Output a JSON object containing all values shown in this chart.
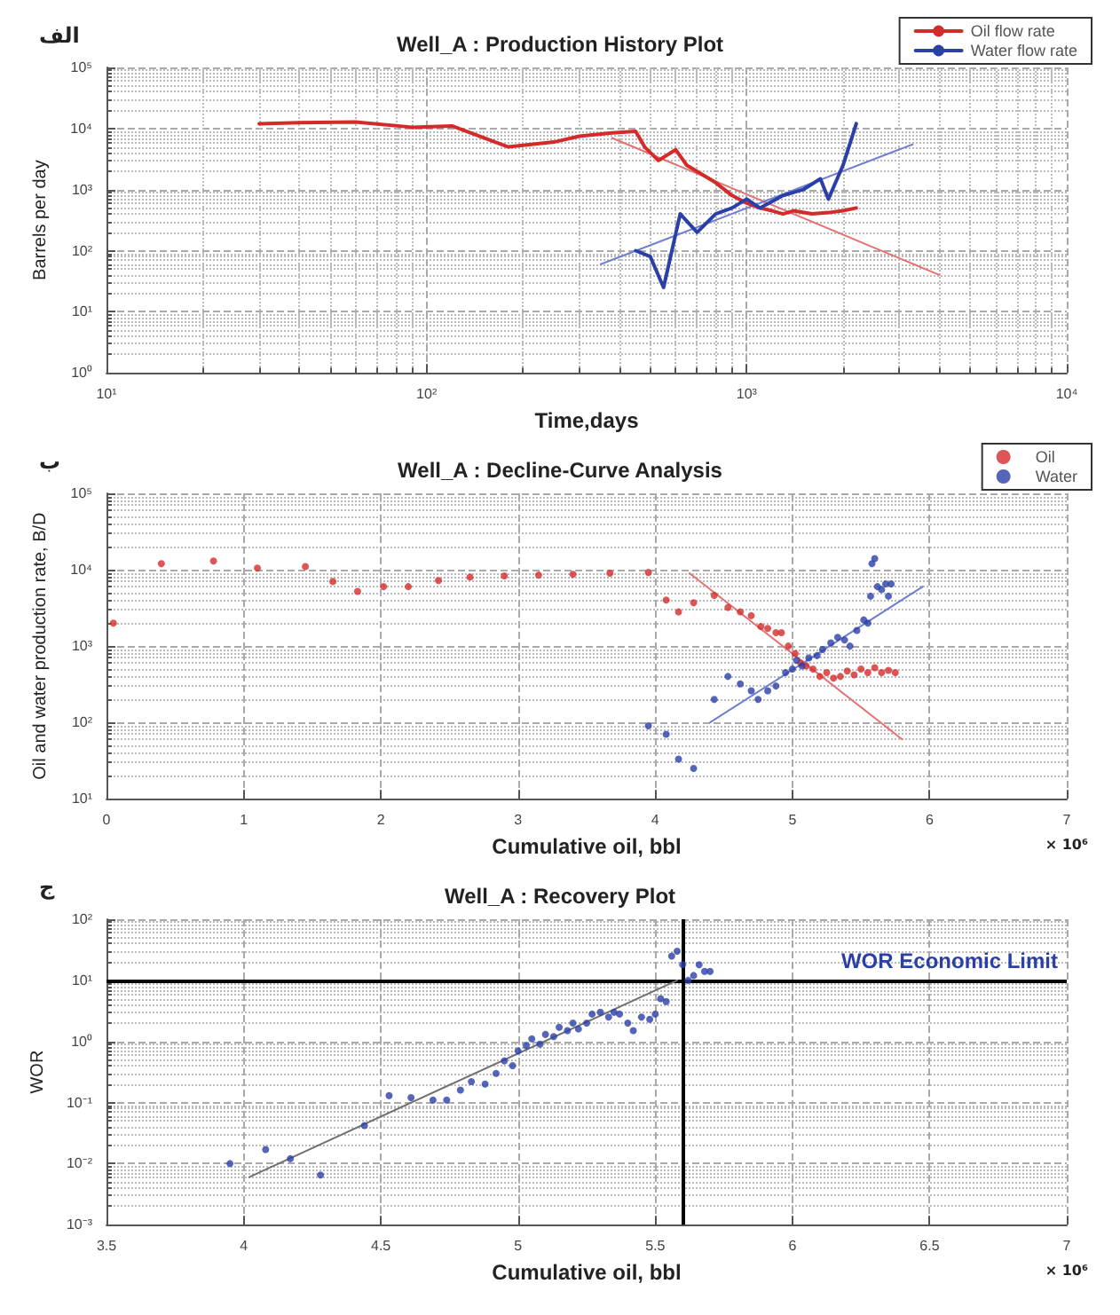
{
  "chart_data": [
    {
      "type": "line",
      "title": "Well_A : Production History Plot",
      "xlabel": "Time,days",
      "ylabel": "Barrels per day",
      "log": "xy",
      "grid": true,
      "legend": "top right",
      "xlim": [
        10,
        10000
      ],
      "xticks": [
        {
          "value": 10,
          "label": "10¹"
        },
        {
          "value": 100,
          "label": "10²"
        },
        {
          "value": 1000,
          "label": "10³"
        },
        {
          "value": 10000,
          "label": "10⁴"
        }
      ],
      "ylim": [
        1,
        100000
      ],
      "yticks": [
        {
          "value": 1,
          "label": "10⁰"
        },
        {
          "value": 10,
          "label": "10¹"
        },
        {
          "value": 100,
          "label": "10²"
        },
        {
          "value": 1000,
          "label": "10³"
        },
        {
          "value": 10000,
          "label": "10⁴"
        },
        {
          "value": 100000,
          "label": "10⁵"
        }
      ],
      "annotations": [
        "الف"
      ],
      "series": [
        {
          "name": "Oil flow rate",
          "color": "#d42a2a",
          "x": [
            30,
            40,
            60,
            90,
            120,
            180,
            250,
            300,
            380,
            450,
            480,
            530,
            600,
            650,
            800,
            900,
            1000,
            1100,
            1200,
            1300,
            1400,
            1600,
            1800,
            2000,
            2200
          ],
          "values": [
            12000,
            12500,
            12800,
            10500,
            11000,
            5000,
            6000,
            7500,
            8500,
            9000,
            5000,
            3000,
            4500,
            2500,
            1300,
            800,
            600,
            500,
            450,
            400,
            450,
            400,
            420,
            450,
            500
          ]
        },
        {
          "name": "Water flow rate",
          "color": "#2a3fa8",
          "x": [
            450,
            500,
            550,
            620,
            700,
            800,
            900,
            1000,
            1100,
            1300,
            1500,
            1700,
            1800,
            2000,
            2200
          ],
          "values": [
            100,
            80,
            25,
            400,
            200,
            400,
            500,
            700,
            500,
            800,
            1000,
            1500,
            700,
            2500,
            12000
          ]
        },
        {
          "color": "#e87070",
          "x": [
            380,
            4000
          ],
          "values": [
            7000,
            40
          ]
        },
        {
          "color": "#7080d0",
          "x": [
            350,
            3300
          ],
          "values": [
            60,
            5500
          ]
        }
      ]
    },
    {
      "type": "scatter",
      "title": "Well_A : Decline-Curve Analysis",
      "xlabel": "Cumulative oil, bbl",
      "ylabel": "Oil and water production rate, B/D",
      "log": "y",
      "grid": true,
      "legend": "top right",
      "marker": "circle",
      "xlim": [
        0,
        7
      ],
      "xticks": [
        0,
        1,
        2,
        3,
        4,
        5,
        6,
        7
      ],
      "ylim": [
        10,
        100000
      ],
      "yticks": [
        {
          "value": 10,
          "label": "10¹"
        },
        {
          "value": 100,
          "label": "10²"
        },
        {
          "value": 1000,
          "label": "10³"
        },
        {
          "value": 10000,
          "label": "10⁴"
        },
        {
          "value": 100000,
          "label": "10⁵"
        }
      ],
      "annotations": [
        "ب",
        "× 10⁶"
      ],
      "series": [
        {
          "name": "Oil",
          "color": "#d42a2a",
          "x": [
            0.05,
            0.4,
            0.78,
            1.1,
            1.45,
            1.65,
            1.83,
            2.02,
            2.2,
            2.42,
            2.65,
            2.9,
            3.15,
            3.4,
            3.67,
            3.95,
            4.08,
            4.17,
            4.28,
            4.43,
            4.53,
            4.62,
            4.7,
            4.77,
            4.82,
            4.88,
            4.92,
            4.97,
            5.02,
            5.06,
            5.1,
            5.15,
            5.2,
            5.25,
            5.3,
            5.35,
            5.4,
            5.45,
            5.5,
            5.55,
            5.6,
            5.65,
            5.7,
            5.75
          ],
          "values": [
            2000,
            12000,
            13000,
            10500,
            11000,
            7000,
            5200,
            6000,
            6000,
            7200,
            8000,
            8300,
            8500,
            8700,
            9000,
            9200,
            4000,
            2800,
            3700,
            4600,
            3200,
            2800,
            2500,
            1800,
            1700,
            1500,
            1500,
            1000,
            800,
            600,
            550,
            500,
            400,
            450,
            380,
            400,
            470,
            420,
            500,
            450,
            520,
            450,
            480,
            450
          ]
        },
        {
          "name": "Water",
          "color": "#2a3fa8",
          "x": [
            3.95,
            4.08,
            4.17,
            4.28,
            4.43,
            4.53,
            4.62,
            4.7,
            4.75,
            4.82,
            4.88,
            4.95,
            5.0,
            5.03,
            5.07,
            5.12,
            5.18,
            5.22,
            5.28,
            5.33,
            5.38,
            5.42,
            5.47,
            5.52,
            5.55,
            5.57,
            5.58,
            5.6,
            5.62,
            5.65,
            5.68,
            5.7,
            5.72
          ],
          "values": [
            90,
            70,
            33,
            25,
            200,
            400,
            320,
            260,
            200,
            260,
            300,
            450,
            500,
            650,
            550,
            700,
            750,
            900,
            1100,
            1300,
            1200,
            1000,
            1600,
            2200,
            2000,
            4500,
            12000,
            14000,
            6000,
            5500,
            6500,
            4500,
            6500
          ]
        },
        {
          "type": "line",
          "marker": "none",
          "color": "#e87070",
          "x": [
            4.25,
            5.8
          ],
          "values": [
            9000,
            60
          ]
        },
        {
          "type": "line",
          "marker": "none",
          "color": "#7080d0",
          "x": [
            4.4,
            5.95
          ],
          "values": [
            100,
            6000
          ]
        }
      ]
    },
    {
      "type": "scatter",
      "title": "Well_A : Recovery Plot",
      "xlabel": "Cumulative oil, bbl",
      "ylabel": "WOR",
      "log": "y",
      "grid": true,
      "marker": "circle",
      "xlim": [
        3.5,
        7
      ],
      "xticks": [
        3.5,
        4,
        4.5,
        5,
        5.5,
        6,
        6.5,
        7
      ],
      "ylim": [
        0.001,
        100
      ],
      "yticks": [
        {
          "value": 0.001,
          "label": "10⁻³"
        },
        {
          "value": 0.01,
          "label": "10⁻²"
        },
        {
          "value": 0.1,
          "label": "10⁻¹"
        },
        {
          "value": 1,
          "label": "10⁰"
        },
        {
          "value": 10,
          "label": "10¹"
        },
        {
          "value": 100,
          "label": "10²"
        }
      ],
      "annotations": [
        "ج",
        "× 10⁶"
      ],
      "ref_lines": [
        {
          "axis": "y",
          "value": 10,
          "label": "WOR Economic Limit",
          "color": "#000000"
        },
        {
          "axis": "x",
          "value": 5.6,
          "label": null,
          "color": "#000000"
        }
      ],
      "series": [
        {
          "color": "#2a3fa8",
          "x": [
            3.95,
            4.08,
            4.17,
            4.28,
            4.44,
            4.53,
            4.61,
            4.69,
            4.74,
            4.79,
            4.83,
            4.88,
            4.92,
            4.95,
            4.98,
            5.0,
            5.03,
            5.05,
            5.08,
            5.1,
            5.13,
            5.15,
            5.18,
            5.2,
            5.22,
            5.25,
            5.27,
            5.3,
            5.33,
            5.35,
            5.37,
            5.4,
            5.42,
            5.45,
            5.48,
            5.5,
            5.52,
            5.54,
            5.56,
            5.58,
            5.6,
            5.62,
            5.64,
            5.66,
            5.68,
            5.7
          ],
          "values": [
            0.01,
            0.017,
            0.012,
            0.0065,
            0.042,
            0.13,
            0.12,
            0.11,
            0.11,
            0.16,
            0.22,
            0.2,
            0.3,
            0.48,
            0.4,
            0.7,
            0.85,
            1.1,
            0.9,
            1.3,
            1.2,
            1.7,
            1.5,
            2.0,
            1.6,
            2.0,
            2.8,
            3.0,
            2.5,
            3.0,
            2.8,
            2.0,
            1.5,
            2.5,
            2.3,
            2.8,
            5,
            4.5,
            25,
            30,
            18,
            10,
            12,
            18,
            14,
            14
          ]
        },
        {
          "type": "line",
          "marker": "none",
          "color": "#707070",
          "x": [
            4.02,
            5.58
          ],
          "values": [
            0.006,
            10
          ]
        }
      ]
    }
  ]
}
